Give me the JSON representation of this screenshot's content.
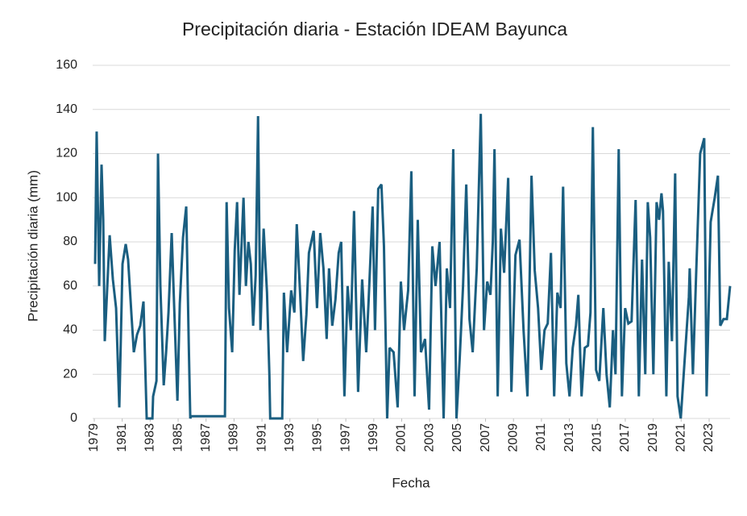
{
  "chart_data": {
    "type": "line",
    "title": "Precipitación diaria - Estación IDEAM Bayunca",
    "x_label": "Fecha",
    "y_label": "Precipitación diaria (mm)",
    "color": "#1a5e80",
    "grid": true,
    "xlim": [
      1979,
      2024.5
    ],
    "ylim": [
      0,
      160
    ],
    "yticks": [
      0,
      20,
      40,
      60,
      80,
      100,
      120,
      140,
      160
    ],
    "xticks": [
      1979,
      1981,
      1983,
      1985,
      1987,
      1989,
      1991,
      1993,
      1995,
      1997,
      1999,
      2001,
      2003,
      2005,
      2007,
      2009,
      2011,
      2013,
      2015,
      2017,
      2019,
      2021,
      2023
    ],
    "x": [
      1979.06,
      1979.17,
      1979.35,
      1979.52,
      1979.64,
      1979.75,
      1980.1,
      1980.33,
      1980.56,
      1980.79,
      1981.02,
      1981.25,
      1981.42,
      1981.66,
      1981.83,
      1982.06,
      1982.29,
      1982.52,
      1982.75,
      1983.16,
      1983.21,
      1983.45,
      1983.56,
      1983.73,
      1983.97,
      1984.14,
      1984.31,
      1984.54,
      1984.72,
      1984.95,
      1985.12,
      1985.35,
      1985.58,
      1985.76,
      1985.87,
      1985.93,
      1988.35,
      1988.47,
      1988.64,
      1988.87,
      1989.05,
      1989.22,
      1989.39,
      1989.68,
      1989.85,
      1990.03,
      1990.2,
      1990.37,
      1990.55,
      1990.72,
      1990.89,
      1991.12,
      1991.36,
      1991.53,
      1991.59,
      1992.45,
      1992.57,
      1992.8,
      1993.09,
      1993.32,
      1993.49,
      1993.72,
      1993.95,
      1994.18,
      1994.36,
      1994.7,
      1994.94,
      1995.17,
      1995.4,
      1995.63,
      1995.8,
      1996.03,
      1996.26,
      1996.49,
      1996.67,
      1996.9,
      1997.13,
      1997.36,
      1997.59,
      1997.88,
      1998.17,
      1998.46,
      1998.63,
      1998.92,
      1999.09,
      1999.32,
      1999.55,
      1999.73,
      1999.96,
      2000.13,
      2000.42,
      2000.71,
      2000.94,
      2001.17,
      2001.46,
      2001.69,
      2001.92,
      2002.15,
      2002.38,
      2002.67,
      2002.96,
      2003.19,
      2003.42,
      2003.71,
      2004.0,
      2004.23,
      2004.46,
      2004.69,
      2004.92,
      2005.15,
      2005.39,
      2005.62,
      2005.85,
      2006.08,
      2006.37,
      2006.66,
      2006.89,
      2007.12,
      2007.35,
      2007.52,
      2007.64,
      2007.87,
      2008.1,
      2008.33,
      2008.62,
      2008.85,
      2009.14,
      2009.43,
      2009.72,
      2010.0,
      2010.29,
      2010.52,
      2010.76,
      2010.99,
      2011.22,
      2011.45,
      2011.68,
      2011.91,
      2012.14,
      2012.37,
      2012.55,
      2012.78,
      2013.01,
      2013.24,
      2013.47,
      2013.64,
      2013.87,
      2014.1,
      2014.33,
      2014.51,
      2014.68,
      2014.91,
      2015.14,
      2015.43,
      2015.66,
      2015.89,
      2016.12,
      2016.3,
      2016.53,
      2016.76,
      2016.99,
      2017.22,
      2017.45,
      2017.74,
      2017.97,
      2018.2,
      2018.43,
      2018.61,
      2018.78,
      2019.01,
      2019.24,
      2019.42,
      2019.59,
      2019.7,
      2019.94,
      2020.11,
      2020.34,
      2020.57,
      2020.74,
      2020.97,
      2021.55,
      2021.61,
      2021.84,
      2022.07,
      2022.36,
      2022.65,
      2022.82,
      2023.11,
      2023.4,
      2023.63,
      2023.8,
      2024.03,
      2024.27,
      2024.5
    ],
    "values": [
      70,
      130,
      60,
      115,
      90,
      35,
      83,
      63,
      50,
      5,
      70,
      79,
      72,
      47,
      30,
      38,
      42,
      53,
      0,
      0,
      10,
      17,
      120,
      60,
      15,
      30,
      48,
      84,
      50,
      8,
      52,
      82,
      96,
      34,
      0,
      1,
      1,
      98,
      50,
      30,
      76,
      98,
      56,
      100,
      60,
      80,
      70,
      42,
      65,
      137,
      40,
      86,
      57,
      20,
      0,
      0,
      57,
      30,
      58,
      48,
      88,
      58,
      26,
      47,
      75,
      85,
      50,
      84,
      68,
      36,
      68,
      42,
      54,
      75,
      80,
      10,
      60,
      40,
      94,
      12,
      63,
      30,
      53,
      96,
      40,
      104,
      106,
      78,
      0,
      32,
      30,
      5,
      62,
      40,
      58,
      112,
      10,
      90,
      30,
      36,
      4,
      78,
      60,
      80,
      0,
      68,
      50,
      122,
      0,
      27,
      60,
      106,
      45,
      30,
      68,
      138,
      40,
      62,
      56,
      80,
      122,
      10,
      86,
      66,
      109,
      12,
      74,
      81,
      40,
      10,
      110,
      67,
      50,
      22,
      40,
      43,
      75,
      10,
      57,
      50,
      105,
      25,
      10,
      32,
      42,
      56,
      10,
      32,
      33,
      48,
      132,
      22,
      17,
      50,
      20,
      5,
      40,
      20,
      122,
      10,
      50,
      43,
      44,
      99,
      10,
      72,
      20,
      98,
      82,
      20,
      98,
      90,
      102,
      94,
      10,
      71,
      35,
      111,
      10,
      0,
      55,
      68,
      20,
      65,
      120,
      127,
      10,
      89,
      100,
      110,
      42,
      45,
      45,
      60
    ]
  }
}
